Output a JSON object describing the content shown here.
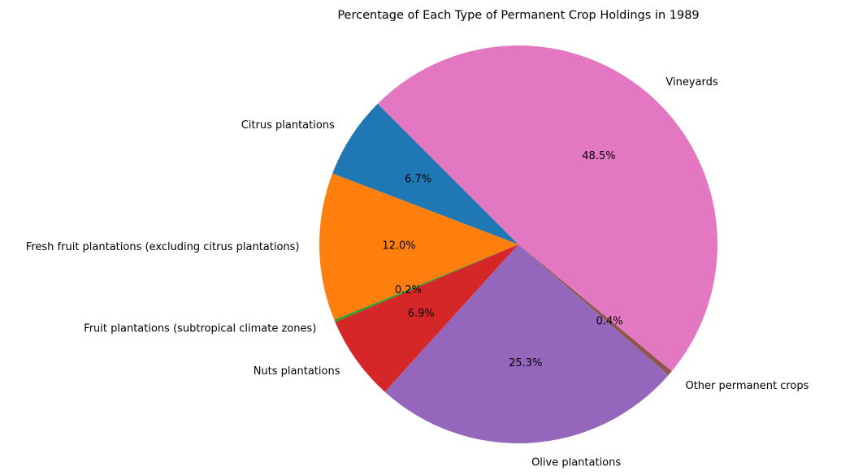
{
  "chart_data": {
    "type": "pie",
    "title": "Percentage of Each Type of Permanent Crop Holdings in 1989",
    "labels": [
      "Citrus plantations",
      "Fresh fruit plantations (excluding citrus plantations)",
      "Fruit plantations (subtropical climate zones)",
      "Nuts plantations",
      "Olive plantations",
      "Other permanent crops",
      "Vineyards"
    ],
    "values": [
      6.7,
      12.0,
      0.2,
      6.9,
      25.3,
      0.4,
      48.5
    ],
    "percent_labels": [
      "6.7%",
      "12.0%",
      "0.2%",
      "6.9%",
      "25.3%",
      "0.4%",
      "48.5%"
    ],
    "colors": [
      "#1f77b4",
      "#ff7f0e",
      "#2ca02c",
      "#d62728",
      "#9467bd",
      "#8c564b",
      "#e377c2"
    ],
    "start_angle_deg": 135,
    "direction": "counterclockwise"
  }
}
